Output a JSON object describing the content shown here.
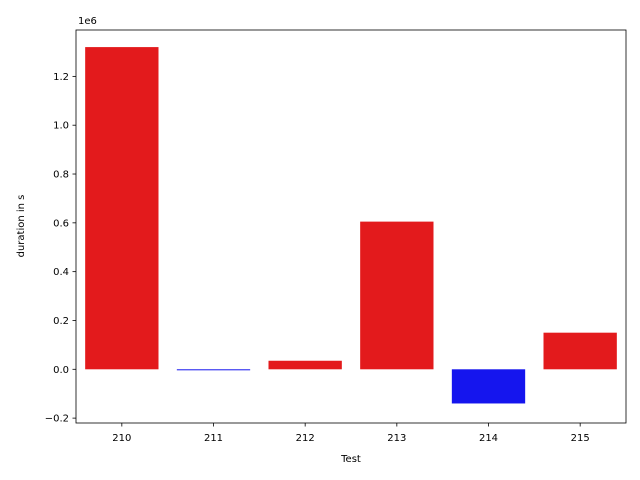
{
  "chart_data": {
    "type": "bar",
    "categories": [
      "210",
      "211",
      "212",
      "213",
      "214",
      "215"
    ],
    "values": [
      1320000,
      -3000,
      35000,
      605000,
      -140000,
      150000
    ],
    "bar_colors": [
      "#e31a1c",
      "#1515ee",
      "#e31a1c",
      "#e31a1c",
      "#1515ee",
      "#e31a1c"
    ],
    "xlabel": "Test",
    "ylabel": "duration in s",
    "offset_text": "1e6",
    "ylim": [
      -0.22,
      1.39
    ],
    "yticks": [
      -0.2,
      0.0,
      0.2,
      0.4,
      0.6,
      0.8,
      1.0,
      1.2
    ],
    "ytick_labels": [
      "−0.2",
      "0.0",
      "0.2",
      "0.4",
      "0.6",
      "0.8",
      "1.0",
      "1.2"
    ],
    "grid": false
  }
}
